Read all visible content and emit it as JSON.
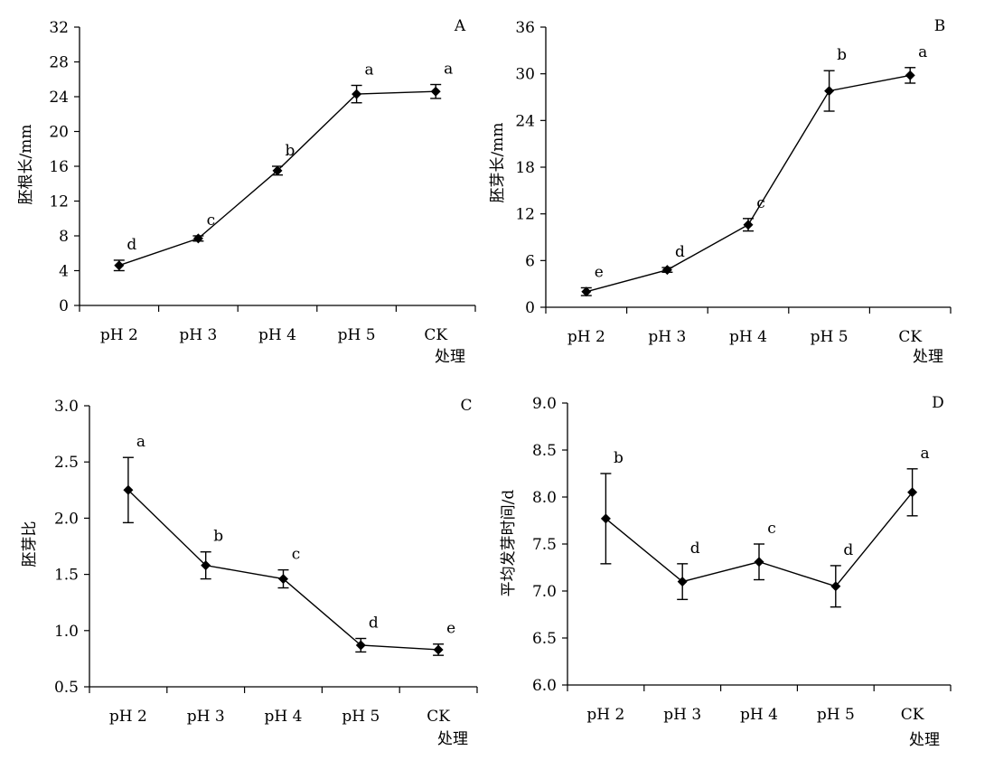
{
  "chart_data": [
    {
      "type": "line",
      "panel_label": "A",
      "categories": [
        "pH 2",
        "pH 3",
        "pH 4",
        "pH 5",
        "CK"
      ],
      "values": [
        4.6,
        7.7,
        15.5,
        24.3,
        24.6
      ],
      "errors": [
        0.6,
        0.3,
        0.5,
        1.0,
        0.8
      ],
      "letters": [
        "d",
        "c",
        "b",
        "a",
        "a"
      ],
      "xlabel": "处理",
      "ylabel": "胚根长/mm",
      "ylim": [
        0,
        32
      ],
      "yticks": [
        "0",
        "4",
        "8",
        "12",
        "16",
        "20",
        "24",
        "28",
        "32"
      ],
      "grid": false,
      "marker": "diamond"
    },
    {
      "type": "line",
      "panel_label": "B",
      "categories": [
        "pH 2",
        "pH 3",
        "pH 4",
        "pH 5",
        "CK"
      ],
      "values": [
        2.0,
        4.8,
        10.6,
        27.8,
        29.8
      ],
      "errors": [
        0.5,
        0.3,
        0.8,
        2.6,
        1.0
      ],
      "letters": [
        "e",
        "d",
        "c",
        "b",
        "a"
      ],
      "xlabel": "处理",
      "ylabel": "胚芽长/mm",
      "ylim": [
        0,
        36
      ],
      "yticks": [
        "0",
        "6",
        "12",
        "18",
        "24",
        "30",
        "36"
      ],
      "grid": false,
      "marker": "diamond"
    },
    {
      "type": "line",
      "panel_label": "C",
      "categories": [
        "pH 2",
        "pH 3",
        "pH 4",
        "pH 5",
        "CK"
      ],
      "values": [
        2.25,
        1.58,
        1.46,
        0.87,
        0.83
      ],
      "errors": [
        0.29,
        0.12,
        0.08,
        0.06,
        0.05
      ],
      "letters": [
        "a",
        "b",
        "c",
        "d",
        "e"
      ],
      "xlabel": "处理",
      "ylabel": "胚芽比",
      "ylim": [
        0.5,
        3.0
      ],
      "yticks": [
        "0.5",
        "1.0",
        "1.5",
        "2.0",
        "2.5",
        "3.0"
      ],
      "grid": false,
      "marker": "diamond"
    },
    {
      "type": "line",
      "panel_label": "D",
      "categories": [
        "pH 2",
        "pH 3",
        "pH 4",
        "pH 5",
        "CK"
      ],
      "values": [
        7.77,
        7.1,
        7.31,
        7.05,
        8.05
      ],
      "errors": [
        0.48,
        0.19,
        0.19,
        0.22,
        0.25
      ],
      "letters": [
        "b",
        "d",
        "c",
        "d",
        "a"
      ],
      "xlabel": "处理",
      "ylabel": "平均发芽时间/d",
      "ylim": [
        6.0,
        9.0
      ],
      "yticks": [
        "6.0",
        "6.5",
        "7.0",
        "7.5",
        "8.0",
        "8.5",
        "9.0"
      ],
      "grid": false,
      "marker": "diamond"
    }
  ]
}
